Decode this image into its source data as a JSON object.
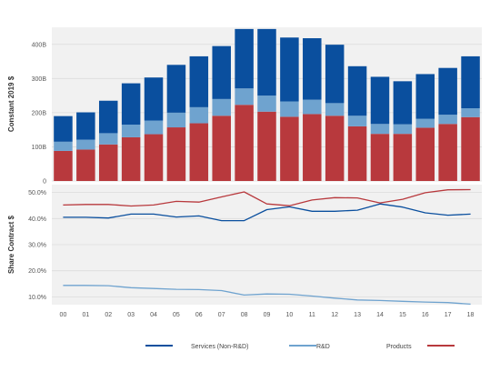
{
  "colors": {
    "services": "#0a4f9e",
    "rd": "#6fa3cf",
    "products": "#b8393d",
    "panel_bg": "#f1f1f1",
    "grid": "#dcdcdc"
  },
  "chart_data": [
    {
      "type": "bar",
      "stacked": true,
      "categories": [
        "00",
        "01",
        "02",
        "03",
        "04",
        "05",
        "06",
        "07",
        "08",
        "09",
        "10",
        "11",
        "12",
        "13",
        "14",
        "15",
        "16",
        "17",
        "18"
      ],
      "ylabel": "Constant 2019 $",
      "ylim": [
        0,
        450
      ],
      "yticks": [
        0,
        100,
        200,
        300,
        400
      ],
      "yticklabels": [
        "0",
        "100B",
        "200B",
        "300B",
        "400B"
      ],
      "grid": true,
      "series": [
        {
          "name": "Products",
          "key": "products",
          "values": [
            88,
            92,
            107,
            128,
            137,
            157,
            169,
            191,
            223,
            203,
            188,
            196,
            191,
            160,
            138,
            138,
            156,
            167,
            187
          ]
        },
        {
          "name": "R&D",
          "key": "rd",
          "values": [
            27,
            29,
            33,
            37,
            40,
            43,
            47,
            49,
            48,
            47,
            45,
            42,
            37,
            31,
            29,
            28,
            26,
            27,
            26
          ]
        },
        {
          "name": "Services (Non-R&D)",
          "key": "services",
          "values": [
            75,
            80,
            95,
            121,
            126,
            140,
            149,
            155,
            174,
            195,
            187,
            180,
            171,
            145,
            138,
            126,
            131,
            137,
            152
          ]
        }
      ]
    },
    {
      "type": "line",
      "x": [
        "00",
        "01",
        "02",
        "03",
        "04",
        "05",
        "06",
        "07",
        "08",
        "09",
        "10",
        "11",
        "12",
        "13",
        "14",
        "15",
        "16",
        "17",
        "18"
      ],
      "ylabel": "Share Contract $",
      "ylim": [
        0.07,
        0.53
      ],
      "yticks": [
        0.1,
        0.2,
        0.3,
        0.4,
        0.5
      ],
      "yticklabels": [
        "10.0%",
        "20.0%",
        "30.0%",
        "40.0%",
        "50.0%"
      ],
      "grid": true,
      "series": [
        {
          "name": "Services (Non-R&D)",
          "key": "services",
          "values": [
            0.405,
            0.405,
            0.402,
            0.417,
            0.417,
            0.406,
            0.41,
            0.392,
            0.392,
            0.434,
            0.445,
            0.428,
            0.428,
            0.432,
            0.456,
            0.444,
            0.422,
            0.413,
            0.417
          ]
        },
        {
          "name": "R&D",
          "key": "rd",
          "values": [
            0.144,
            0.144,
            0.143,
            0.135,
            0.132,
            0.129,
            0.128,
            0.124,
            0.107,
            0.111,
            0.11,
            0.103,
            0.095,
            0.088,
            0.086,
            0.083,
            0.08,
            0.078,
            0.072
          ]
        },
        {
          "name": "Products",
          "key": "products",
          "values": [
            0.452,
            0.454,
            0.454,
            0.448,
            0.452,
            0.466,
            0.463,
            0.483,
            0.502,
            0.456,
            0.449,
            0.471,
            0.48,
            0.479,
            0.46,
            0.474,
            0.499,
            0.51,
            0.511
          ]
        }
      ]
    }
  ],
  "legend": [
    {
      "label": "Services (Non-R&D)",
      "key": "services"
    },
    {
      "label": "R&D",
      "key": "rd"
    },
    {
      "label": "Products",
      "key": "products"
    }
  ]
}
